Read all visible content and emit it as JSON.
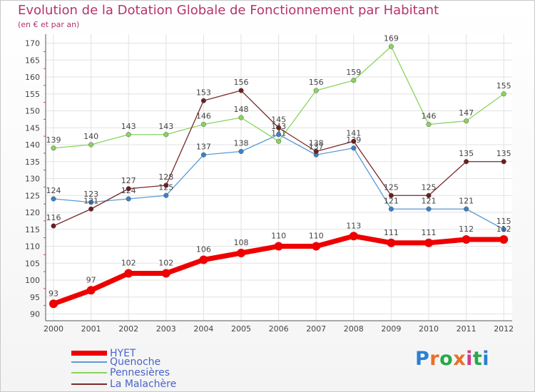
{
  "title": "Evolution de la Dotation Globale de Fonctionnement par Habitant",
  "subtitle": "(en € et par an)",
  "logo": {
    "text": "Proxiti",
    "letters": [
      "P",
      "r",
      "o",
      "x",
      "i",
      "t",
      "i"
    ],
    "colors": [
      "#2a7fd4",
      "#e8702a",
      "#2aa84a",
      "#e8702a",
      "#d43a8a",
      "#2aa84a",
      "#2a7fd4"
    ]
  },
  "chart_data": {
    "type": "line",
    "title": "Evolution de la Dotation Globale de Fonctionnement par Habitant",
    "subtitle": "(en € et par an)",
    "xlabel": "",
    "ylabel": "",
    "ylim": [
      90,
      172
    ],
    "y_ticks": [
      90,
      95,
      100,
      105,
      110,
      115,
      120,
      125,
      130,
      135,
      140,
      145,
      150,
      155,
      160,
      165,
      170
    ],
    "x": [
      "2000",
      "2001",
      "2002",
      "2003",
      "2004",
      "2005",
      "2006",
      "2007",
      "2008",
      "2009",
      "2010",
      "2011",
      "2012"
    ],
    "grid": true,
    "legend_position": "bottom-left",
    "series": [
      {
        "name": "Pennesières",
        "color": "#88d45c",
        "marker": "#88d45c",
        "values": [
          139,
          140,
          143,
          143,
          146,
          148,
          141,
          156,
          159,
          169,
          146,
          147,
          155
        ]
      },
      {
        "name": "Quenoche",
        "color": "#5b9bd5",
        "marker": "#3f7fc4",
        "values": [
          124,
          123,
          124,
          125,
          137,
          138,
          143,
          137,
          139,
          121,
          121,
          121,
          115
        ]
      },
      {
        "name": "La Malachère",
        "color": "#7a2a2a",
        "marker": "#6b1f1f",
        "values": [
          116,
          121,
          127,
          128,
          153,
          156,
          145,
          138,
          141,
          125,
          125,
          135,
          135
        ]
      },
      {
        "name": "HYET",
        "color": "#ee0000",
        "marker": "#ee0000",
        "values": [
          93,
          97,
          102,
          102,
          106,
          108,
          110,
          110,
          113,
          111,
          111,
          112,
          112
        ]
      }
    ]
  },
  "legend": [
    {
      "label": "HYET",
      "color": "#ee0000"
    },
    {
      "label": "Quenoche",
      "color": "#5b9bd5"
    },
    {
      "label": "Pennesières",
      "color": "#88d45c"
    },
    {
      "label": "La Malachère",
      "color": "#7a2a2a"
    }
  ]
}
